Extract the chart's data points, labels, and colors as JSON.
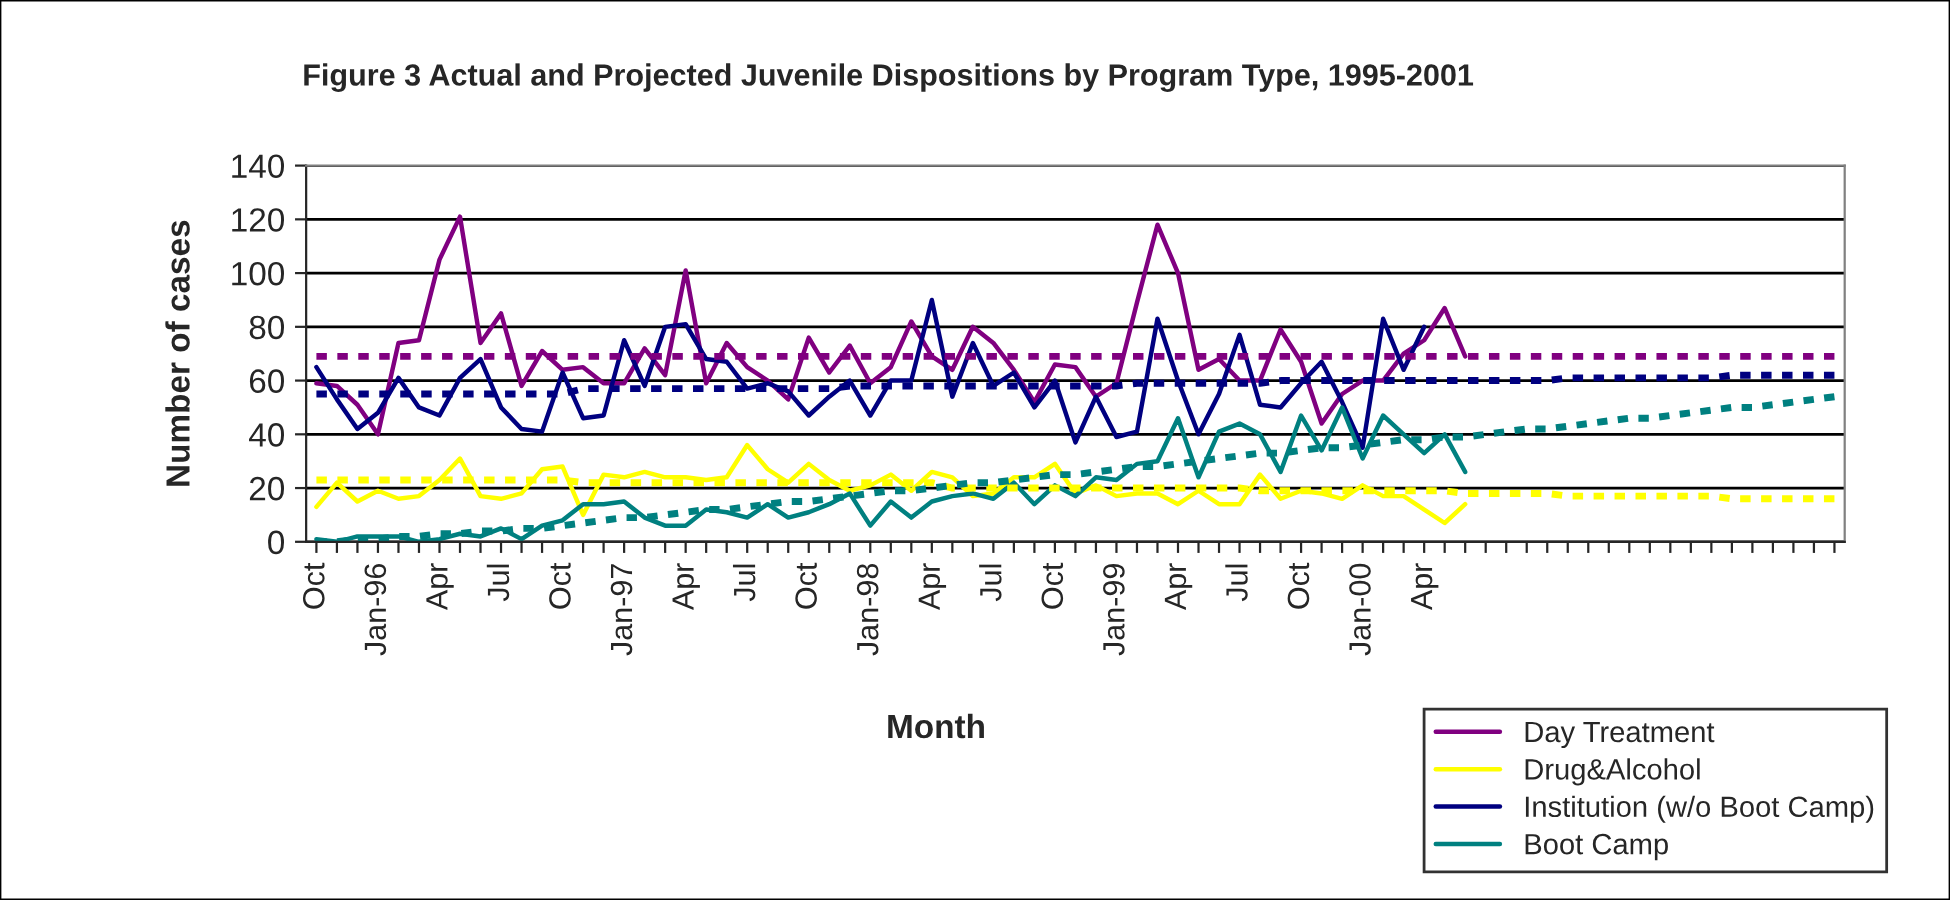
{
  "chart_data": {
    "type": "line",
    "title": "Figure 3 Actual and Projected Juvenile Dispositions by Program Type, 1995-2001",
    "xlabel": "Month",
    "ylabel": "Number of cases",
    "categories": [
      "Oct",
      null,
      null,
      "Jan-96",
      null,
      null,
      "Apr",
      null,
      null,
      "Jul",
      null,
      null,
      "Oct",
      null,
      null,
      "Jan-97",
      null,
      null,
      "Apr",
      null,
      null,
      "Jul",
      null,
      null,
      "Oct",
      null,
      null,
      "Jan-98",
      null,
      null,
      "Apr",
      null,
      null,
      "Jul",
      null,
      null,
      "Oct",
      null,
      null,
      "Jan-99",
      null,
      null,
      "Apr",
      null,
      null,
      "Jul",
      null,
      null,
      "Oct",
      null,
      null,
      "Jan-00",
      null,
      null,
      "Apr",
      null,
      null,
      null,
      null,
      null,
      null,
      null,
      null,
      null,
      null,
      null,
      null,
      null,
      null,
      null,
      null,
      null,
      null,
      null,
      null
    ],
    "ylim": [
      0,
      140
    ],
    "yticks": [
      0,
      20,
      40,
      60,
      80,
      100,
      120,
      140
    ],
    "grid": "y",
    "legend": "bottom right",
    "series": [
      {
        "name": "Day Treatment",
        "color": "#800080",
        "line_style": "solid",
        "values": [
          59,
          58,
          51,
          40,
          74,
          75,
          105,
          121,
          74,
          85,
          58,
          71,
          64,
          65,
          59,
          59,
          72,
          62,
          101,
          59,
          74,
          65,
          60,
          53,
          76,
          63,
          73,
          59,
          65,
          82,
          69,
          64,
          80,
          74,
          64,
          52,
          66,
          65,
          54,
          59,
          89,
          118,
          100,
          64,
          68,
          60,
          60,
          79,
          67,
          44,
          55,
          60,
          60,
          70,
          75,
          87,
          69,
          null,
          null,
          null,
          null,
          null,
          null,
          null,
          null,
          null,
          null,
          null,
          null,
          null,
          null,
          null,
          null,
          null,
          null
        ]
      },
      {
        "name": "Drug&Alcohol",
        "color": "#ffff00",
        "line_style": "solid",
        "values": [
          13,
          22,
          15,
          19,
          16,
          17,
          23,
          31,
          17,
          16,
          18,
          27,
          28,
          10,
          25,
          24,
          26,
          24,
          24,
          23,
          24,
          36,
          27,
          22,
          29,
          23,
          19,
          21,
          25,
          19,
          26,
          24,
          17,
          18,
          24,
          24,
          29,
          18,
          21,
          17,
          18,
          18,
          14,
          19,
          14,
          14,
          25,
          16,
          19,
          18,
          16,
          21,
          17,
          17,
          12,
          7,
          14,
          null,
          null,
          null,
          null,
          null,
          null,
          null,
          null,
          null,
          null,
          null,
          null,
          null,
          null,
          null,
          null,
          null,
          null
        ]
      },
      {
        "name": "Institution (w/o Boot Camp)",
        "color": "#000080",
        "line_style": "solid",
        "values": [
          65,
          53,
          42,
          48,
          61,
          50,
          47,
          61,
          68,
          50,
          42,
          41,
          63,
          46,
          47,
          75,
          58,
          80,
          81,
          68,
          67,
          57,
          59,
          56,
          47,
          54,
          60,
          47,
          60,
          60,
          90,
          54,
          74,
          58,
          63,
          50,
          60,
          37,
          54,
          39,
          41,
          83,
          60,
          40,
          55,
          77,
          51,
          50,
          59,
          67,
          52,
          35,
          83,
          64,
          80,
          null,
          null,
          null,
          null,
          null,
          null,
          null,
          null,
          null,
          null,
          null,
          null,
          null,
          null,
          null,
          null,
          null,
          null,
          null,
          null
        ]
      },
      {
        "name": "Boot Camp",
        "color": "#008080",
        "line_style": "solid",
        "values": [
          1,
          0,
          2,
          2,
          2,
          0,
          1,
          3,
          2,
          5,
          1,
          6,
          8,
          14,
          14,
          15,
          9,
          6,
          6,
          12,
          11,
          9,
          14,
          9,
          11,
          14,
          18,
          6,
          15,
          9,
          15,
          17,
          18,
          16,
          22,
          14,
          21,
          17,
          24,
          23,
          29,
          30,
          46,
          24,
          41,
          44,
          40,
          26,
          47,
          34,
          50,
          31,
          47,
          40,
          33,
          40,
          26,
          null,
          null,
          null,
          null,
          null,
          null,
          null,
          null,
          null,
          null,
          null,
          null,
          null,
          null,
          null,
          null,
          null,
          null
        ]
      },
      {
        "color": "#800080",
        "line_style": "dotted",
        "values": [
          69,
          69,
          69,
          69,
          69,
          69,
          69,
          69,
          69,
          69,
          69,
          69,
          69,
          69,
          69,
          69,
          69,
          69,
          69,
          69,
          69,
          69,
          69,
          69,
          69,
          69,
          69,
          69,
          69,
          69,
          69,
          69,
          69,
          69,
          69,
          69,
          69,
          69,
          69,
          69,
          69,
          69,
          69,
          69,
          69,
          69,
          69,
          69,
          69,
          69,
          69,
          69,
          69,
          69,
          69,
          69,
          69,
          69,
          69,
          69,
          69,
          69,
          69,
          69,
          69,
          69,
          69,
          69,
          69,
          69,
          69,
          69,
          69,
          69,
          69
        ]
      },
      {
        "color": "#000080",
        "line_style": "dotted",
        "values": [
          55,
          55,
          55,
          55,
          55,
          55,
          55,
          55,
          55,
          55,
          55,
          55,
          55,
          57,
          57,
          57,
          57,
          57,
          57,
          57,
          57,
          57,
          57,
          57,
          57,
          57,
          58,
          58,
          58,
          58,
          58,
          58,
          58,
          58,
          58,
          58,
          58,
          58,
          58,
          58,
          59,
          59,
          59,
          59,
          59,
          59,
          59,
          60,
          60,
          60,
          60,
          60,
          60,
          60,
          60,
          60,
          60,
          60,
          60,
          60,
          60,
          61,
          61,
          61,
          61,
          61,
          61,
          61,
          61,
          62,
          62,
          62,
          62,
          62,
          62
        ]
      },
      {
        "color": "#ffff00",
        "line_style": "dotted",
        "values": [
          23,
          23,
          23,
          23,
          23,
          23,
          23,
          23,
          23,
          23,
          23,
          23,
          23,
          22,
          22,
          22,
          22,
          22,
          22,
          22,
          22,
          22,
          22,
          22,
          22,
          22,
          22,
          22,
          22,
          22,
          22,
          20,
          20,
          20,
          20,
          20,
          20,
          20,
          20,
          20,
          20,
          20,
          20,
          20,
          20,
          20,
          19,
          19,
          19,
          19,
          19,
          19,
          19,
          19,
          19,
          19,
          18,
          18,
          18,
          18,
          18,
          17,
          17,
          17,
          17,
          17,
          17,
          17,
          17,
          16,
          16,
          16,
          16,
          16,
          16
        ]
      },
      {
        "color": "#008080",
        "line_style": "dotted",
        "values": [
          0,
          0,
          1,
          1,
          2,
          2,
          3,
          3,
          4,
          4,
          5,
          5,
          6,
          7,
          8,
          9,
          9,
          10,
          11,
          12,
          12,
          13,
          14,
          15,
          15,
          16,
          17,
          18,
          19,
          19,
          20,
          21,
          22,
          22,
          23,
          24,
          25,
          25,
          26,
          27,
          28,
          28,
          29,
          30,
          31,
          32,
          33,
          33,
          34,
          35,
          35,
          36,
          37,
          38,
          38,
          39,
          39,
          40,
          41,
          42,
          42,
          43,
          44,
          45,
          46,
          46,
          47,
          48,
          49,
          50,
          50,
          51,
          52,
          53,
          54
        ]
      }
    ]
  }
}
